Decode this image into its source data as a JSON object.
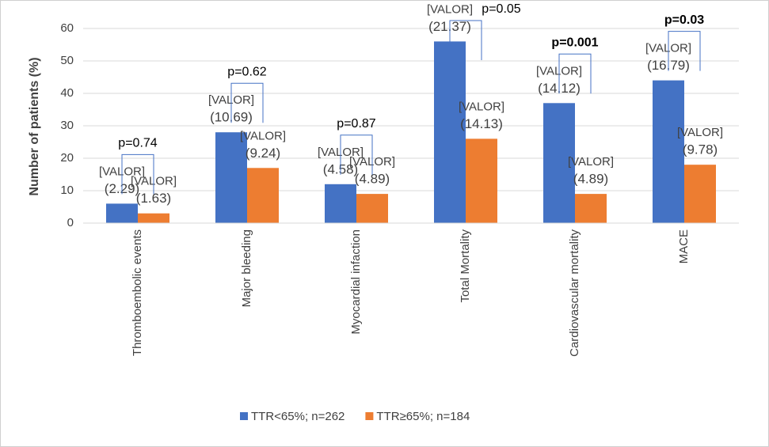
{
  "chart_data": {
    "type": "bar",
    "y_label": "Number of patients (%)",
    "categories": [
      "Thromboembolic events",
      "Major bleeding",
      "Myocardial infaction",
      "Total Mortality",
      "Cardiovascular mortality",
      "MACE"
    ],
    "series": [
      {
        "name": "TTR<65%; n=262",
        "color": "#4472c4",
        "values": [
          6,
          28,
          12,
          56,
          37,
          44
        ],
        "label_texts": [
          [
            "[VALOR]",
            "(2.29)"
          ],
          [
            "[VALOR]",
            "(10.69)"
          ],
          [
            "[VALOR]",
            "(4.58)"
          ],
          [
            "[VALOR]",
            "(21.37)"
          ],
          [
            "[VALOR]",
            "(14.12)"
          ],
          [
            "[VALOR]",
            "(16.79)"
          ]
        ]
      },
      {
        "name": "TTR≥65%; n=184",
        "color": "#ed7d31",
        "values": [
          3,
          17,
          9,
          26,
          9,
          18
        ],
        "label_texts": [
          [
            "[VALOR]",
            "(1.63)"
          ],
          [
            "[VALOR]",
            "(9.24)"
          ],
          [
            "[VALOR]",
            "(4.89)"
          ],
          [
            "[VALOR]",
            "(14.13)"
          ],
          [
            "[VALOR]",
            "(4.89)"
          ],
          [
            "[VALOR]",
            "(9.78)"
          ]
        ]
      }
    ],
    "p_values": [
      "p=0.74",
      "p=0.62",
      "p=0.87",
      "p=0.05",
      "p=0.001",
      "p=0.03"
    ],
    "p_bold": [
      false,
      false,
      false,
      false,
      true,
      true
    ],
    "ylim": [
      0,
      60
    ],
    "yticks": [
      0,
      10,
      20,
      30,
      40,
      50,
      60
    ],
    "grid": true,
    "legend": "bottom"
  }
}
